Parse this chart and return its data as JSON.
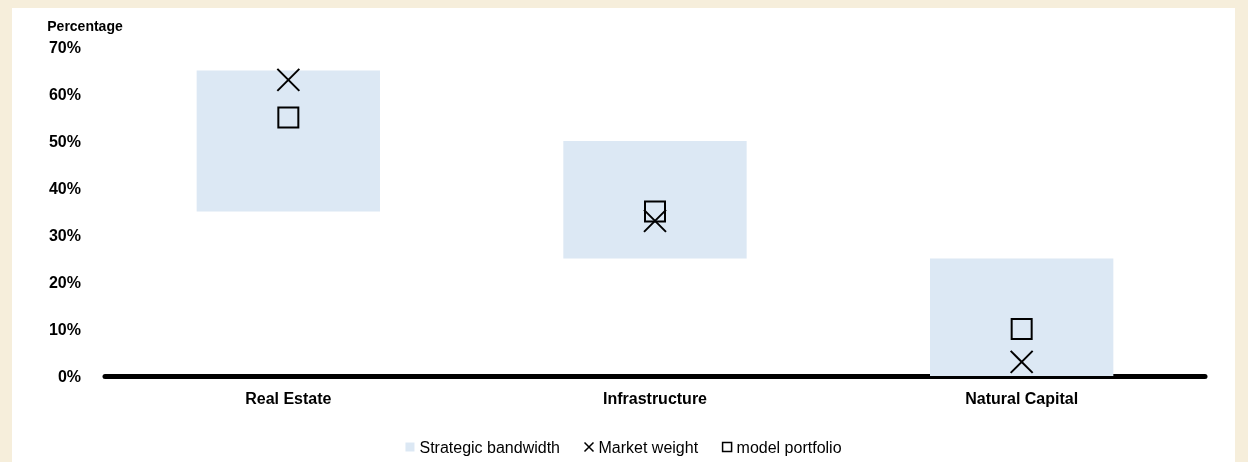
{
  "chart_data": {
    "type": "bar",
    "ylabel": "Percentage",
    "categories": [
      "Real Estate",
      "Infrastructure",
      "Natural Capital"
    ],
    "ylim": [
      0,
      70
    ],
    "yticks": [
      {
        "value": 0,
        "label": "0%"
      },
      {
        "value": 10,
        "label": "10%"
      },
      {
        "value": 20,
        "label": "20%"
      },
      {
        "value": 30,
        "label": "30%"
      },
      {
        "value": 40,
        "label": "40%"
      },
      {
        "value": 50,
        "label": "50%"
      },
      {
        "value": 60,
        "label": "60%"
      },
      {
        "value": 70,
        "label": "70%"
      }
    ],
    "series": [
      {
        "name": "Strategic bandwidth",
        "color": "#dce8f4",
        "base": [
          35,
          25,
          0
        ],
        "values": [
          30,
          25,
          25
        ]
      },
      {
        "name": "Market weight",
        "type": "scatter",
        "marker": "cross",
        "color": "#000000",
        "values": [
          63,
          33,
          3
        ]
      },
      {
        "name": "model portfolio",
        "type": "scatter",
        "marker": "square",
        "color": "#000000",
        "values": [
          55,
          35,
          10
        ]
      }
    ],
    "grid": false,
    "legend": "bottom"
  }
}
